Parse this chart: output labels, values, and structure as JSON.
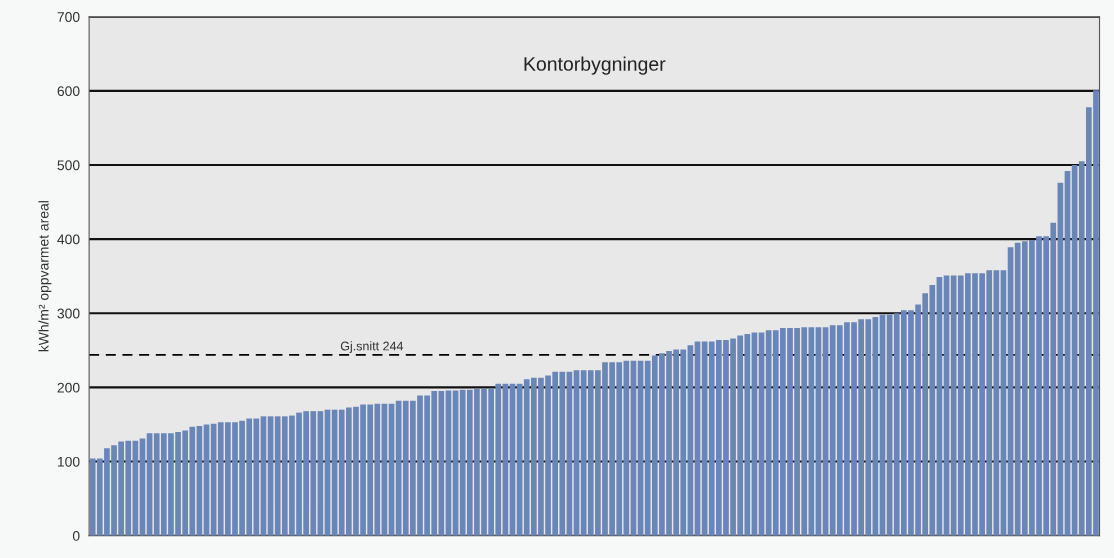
{
  "chart_data": {
    "type": "bar",
    "title": "Kontorbygninger",
    "ylabel": "kWh/m² oppvarmet areal",
    "categories": [
      null,
      null,
      null,
      null,
      null,
      null,
      null,
      null,
      null,
      null,
      null,
      null,
      null,
      null,
      null,
      null,
      null,
      null,
      null,
      null,
      null,
      null,
      null,
      null,
      null,
      null,
      null,
      null,
      null,
      null,
      null,
      null,
      null,
      null,
      null,
      null,
      null,
      null,
      null,
      null,
      null,
      null,
      null,
      null,
      null,
      null,
      null,
      null,
      null,
      null,
      null,
      null,
      null,
      null,
      null,
      null,
      null,
      null,
      null,
      null,
      null,
      null,
      null,
      null,
      null,
      null,
      null,
      null,
      null,
      null,
      null,
      null,
      null,
      null,
      null,
      null,
      null,
      null,
      null,
      null,
      null,
      null,
      null,
      null,
      null,
      null,
      null,
      null,
      null,
      null,
      null,
      null,
      null,
      null,
      null,
      null,
      null,
      null,
      null,
      null,
      null,
      null,
      null,
      null,
      null,
      null,
      null,
      null,
      null,
      null,
      null,
      null,
      null,
      null,
      null,
      null,
      null,
      null,
      null,
      null,
      null,
      null,
      null,
      null,
      null,
      null,
      null,
      null,
      null,
      null,
      null,
      null,
      null,
      null,
      null,
      null,
      null,
      null,
      null,
      null,
      null,
      null
    ],
    "values": [
      104,
      104,
      118,
      122,
      127,
      128,
      128,
      131,
      138,
      138,
      138,
      138,
      140,
      142,
      147,
      148,
      150,
      151,
      153,
      153,
      153,
      155,
      158,
      158,
      161,
      161,
      161,
      161,
      162,
      166,
      168,
      168,
      168,
      170,
      170,
      170,
      173,
      174,
      177,
      177,
      178,
      178,
      178,
      182,
      182,
      182,
      189,
      189,
      195,
      195,
      196,
      196,
      197,
      197,
      198,
      198,
      199,
      205,
      205,
      205,
      205,
      211,
      213,
      213,
      216,
      221,
      221,
      221,
      223,
      223,
      223,
      223,
      234,
      234,
      234,
      236,
      236,
      236,
      236,
      243,
      246,
      249,
      251,
      251,
      257,
      262,
      262,
      262,
      264,
      264,
      266,
      270,
      272,
      274,
      274,
      277,
      277,
      280,
      280,
      280,
      281,
      281,
      281,
      281,
      284,
      284,
      288,
      288,
      292,
      292,
      295,
      298,
      298,
      300,
      304,
      304,
      312,
      327,
      338,
      349,
      351,
      351,
      351,
      354,
      354,
      354,
      358,
      358,
      358,
      389,
      395,
      397,
      399,
      404,
      404,
      422,
      476,
      492,
      500,
      505,
      578,
      601
    ],
    "color": "#6a86b8",
    "ylim": [
      0,
      700
    ],
    "yticks": [
      0,
      100,
      200,
      300,
      400,
      500,
      600,
      700
    ],
    "grid": "y",
    "ref_lines": [
      {
        "axis": "y",
        "value": 244,
        "label": "Gj.snitt 244",
        "line_style": "dashed",
        "color": "#000000"
      }
    ]
  }
}
